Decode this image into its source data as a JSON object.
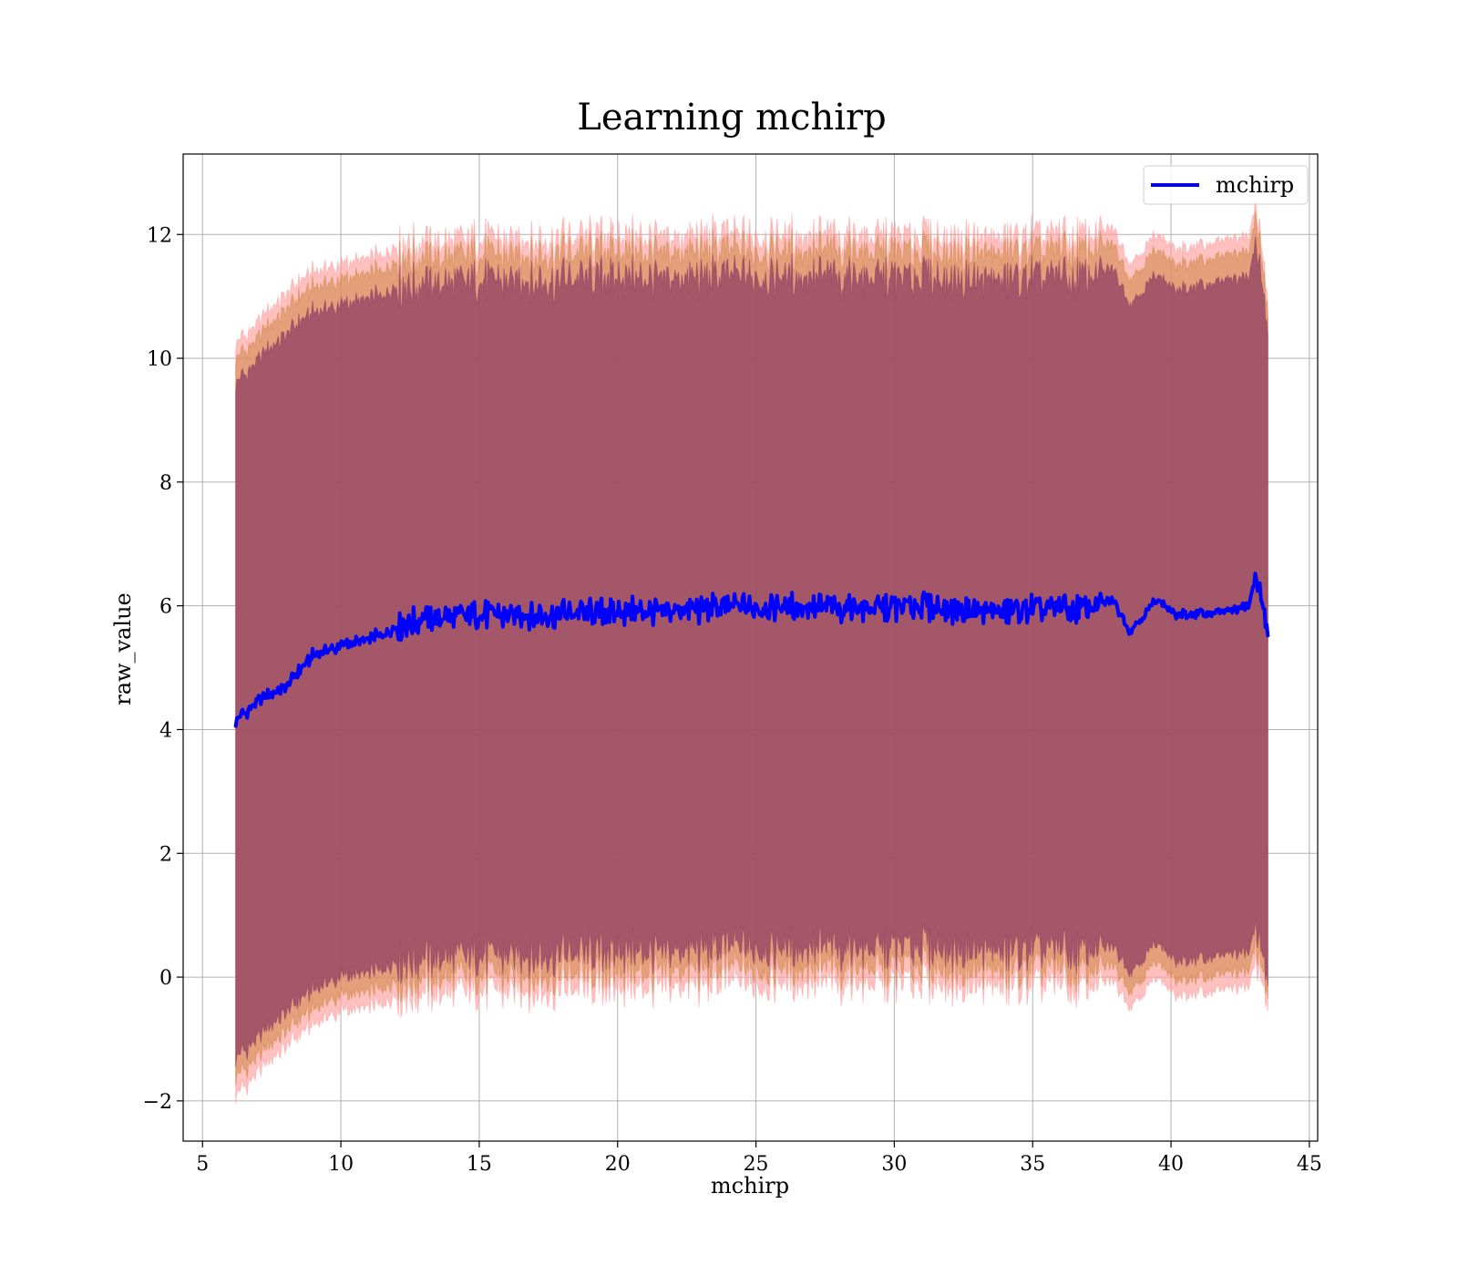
{
  "chart_data": {
    "type": "line",
    "title": "Learning mchirp",
    "xlabel": "mchirp",
    "ylabel": "raw_value",
    "xlim": [
      4.3,
      45.3
    ],
    "ylim": [
      -2.65,
      13.3
    ],
    "xticks": [
      5,
      10,
      15,
      20,
      25,
      30,
      35,
      40,
      45
    ],
    "yticks": [
      -2,
      0,
      2,
      4,
      6,
      8,
      10,
      12
    ],
    "ytick_labels": [
      "−2",
      "0",
      "2",
      "4",
      "6",
      "8",
      "10",
      "12"
    ],
    "grid": true,
    "legend": {
      "position": "top-right",
      "entries": [
        "mchirp"
      ]
    },
    "series": [
      {
        "name": "mchirp",
        "kind": "line",
        "color": "#0000ff",
        "x": [
          6.2,
          7,
          8,
          9,
          10,
          11,
          12,
          13,
          15,
          17,
          20,
          23,
          25,
          27,
          29,
          31,
          33,
          35,
          37,
          37.9,
          38.5,
          39.5,
          40.2,
          42,
          42.8,
          43.1,
          43.5
        ],
        "y": [
          4.15,
          4.45,
          4.7,
          5.2,
          5.35,
          5.45,
          5.65,
          5.8,
          5.85,
          5.85,
          5.9,
          5.95,
          6.0,
          6.0,
          5.95,
          6.0,
          5.9,
          5.95,
          5.95,
          6.1,
          5.6,
          6.1,
          5.85,
          5.9,
          6.0,
          6.5,
          5.55
        ]
      }
    ],
    "bands": [
      {
        "kind": "band",
        "color": "#ff9999",
        "x": [
          6.2,
          7,
          8,
          9,
          10,
          11,
          12,
          13,
          15,
          17,
          20,
          23,
          25,
          27,
          29,
          31,
          33,
          35,
          37,
          37.9,
          38.5,
          39.5,
          40.2,
          42,
          42.8,
          43.1,
          43.5
        ],
        "upper": [
          10.25,
          10.55,
          11.05,
          11.4,
          11.5,
          11.6,
          11.8,
          11.85,
          11.9,
          11.9,
          11.95,
          11.95,
          12.0,
          12.0,
          11.95,
          11.95,
          11.9,
          11.95,
          11.95,
          12.1,
          11.55,
          12.0,
          11.75,
          11.9,
          11.95,
          12.5,
          10.9
        ],
        "lower": [
          -1.9,
          -1.55,
          -1.1,
          -0.75,
          -0.55,
          -0.5,
          -0.3,
          -0.25,
          -0.2,
          -0.2,
          -0.15,
          -0.1,
          -0.05,
          -0.05,
          -0.1,
          -0.05,
          -0.15,
          -0.1,
          -0.15,
          -0.05,
          -0.45,
          0.0,
          -0.3,
          -0.2,
          -0.15,
          0.3,
          -0.5
        ]
      },
      {
        "kind": "band",
        "color": "#cd853f",
        "x": [
          6.2,
          7,
          8,
          9,
          10,
          11,
          12,
          13,
          15,
          17,
          20,
          23,
          25,
          27,
          29,
          31,
          33,
          35,
          37,
          37.9,
          38.5,
          39.5,
          40.2,
          42,
          42.8,
          43.1,
          43.5
        ],
        "upper": [
          10.0,
          10.3,
          10.8,
          11.15,
          11.25,
          11.35,
          11.55,
          11.6,
          11.65,
          11.65,
          11.7,
          11.7,
          11.75,
          11.75,
          11.7,
          11.7,
          11.65,
          11.7,
          11.7,
          11.85,
          11.3,
          11.75,
          11.5,
          11.65,
          11.7,
          12.3,
          10.7
        ],
        "lower": [
          -1.6,
          -1.3,
          -0.85,
          -0.5,
          -0.3,
          -0.25,
          -0.05,
          0.0,
          0.05,
          0.05,
          0.1,
          0.15,
          0.2,
          0.2,
          0.15,
          0.2,
          0.1,
          0.15,
          0.1,
          0.2,
          -0.2,
          0.25,
          -0.05,
          0.05,
          0.1,
          0.55,
          -0.3
        ]
      },
      {
        "kind": "band",
        "color": "#8b3a62",
        "x": [
          6.2,
          7,
          8,
          9,
          10,
          11,
          12,
          13,
          15,
          17,
          20,
          23,
          25,
          27,
          29,
          31,
          33,
          35,
          37,
          37.9,
          38.5,
          39.5,
          40.2,
          42,
          42.8,
          43.1,
          43.5
        ],
        "upper": [
          9.6,
          9.95,
          10.4,
          10.75,
          10.85,
          10.95,
          11.15,
          11.2,
          11.25,
          11.25,
          11.3,
          11.3,
          11.35,
          11.35,
          11.3,
          11.3,
          11.25,
          11.3,
          11.3,
          11.45,
          10.9,
          11.35,
          11.1,
          11.25,
          11.3,
          11.9,
          10.4
        ],
        "lower": [
          -1.3,
          -1.0,
          -0.55,
          -0.2,
          0.0,
          0.05,
          0.25,
          0.3,
          0.35,
          0.35,
          0.4,
          0.45,
          0.5,
          0.5,
          0.45,
          0.5,
          0.4,
          0.45,
          0.4,
          0.5,
          0.1,
          0.55,
          0.25,
          0.35,
          0.4,
          0.85,
          -0.1
        ]
      }
    ]
  }
}
